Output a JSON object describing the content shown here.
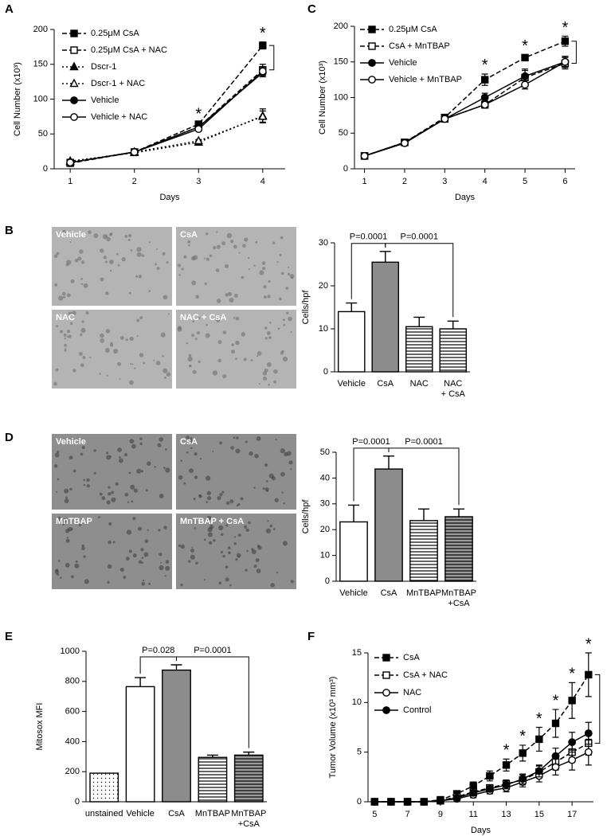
{
  "chart_data": [
    {
      "panel": "A",
      "type": "line",
      "x": [
        1,
        2,
        3,
        4
      ],
      "xlim": [
        0.75,
        4.35
      ],
      "xticks": [
        1,
        2,
        3,
        4
      ],
      "ylim": [
        0,
        200
      ],
      "yticks": [
        0,
        50,
        100,
        150,
        200
      ],
      "xlabel": "Days",
      "ylabel": "Cell Number (x10³)",
      "legend": "upper left",
      "series": [
        {
          "name": "0.25μM CsA",
          "color": "#000000",
          "line": "dashed",
          "marker": "square",
          "filled": true,
          "values": [
            9,
            24,
            64,
            177
          ],
          "errors": [
            1,
            1,
            2,
            5
          ]
        },
        {
          "name": "0.25μM CsA + NAC",
          "color": "#000000",
          "line": "dashed",
          "marker": "square",
          "filled": false,
          "values": [
            8,
            24,
            60,
            142
          ],
          "errors": [
            1,
            1,
            2,
            8
          ]
        },
        {
          "name": "Dscr-1",
          "color": "#000000",
          "line": "dotted",
          "marker": "triangle",
          "filled": true,
          "values": [
            11,
            23,
            38,
            76
          ],
          "errors": [
            1,
            1,
            2,
            10
          ]
        },
        {
          "name": "Dscr-1 + NAC",
          "color": "#000000",
          "line": "dotted",
          "marker": "triangle",
          "filled": false,
          "values": [
            10,
            24,
            40,
            75
          ],
          "errors": [
            1,
            1,
            2,
            8
          ]
        },
        {
          "name": "Vehicle",
          "color": "#000000",
          "line": "solid",
          "marker": "circle",
          "filled": true,
          "values": [
            9,
            24,
            60,
            138
          ],
          "errors": [
            1,
            1,
            2,
            6
          ]
        },
        {
          "name": "Vehicle + NAC",
          "color": "#000000",
          "line": "solid",
          "marker": "circle",
          "filled": false,
          "values": [
            9,
            24,
            57,
            140
          ],
          "errors": [
            1,
            1,
            2,
            6
          ]
        }
      ],
      "annotations": [
        {
          "text": "*",
          "x": 3
        },
        {
          "text": "*",
          "x": 4
        }
      ]
    },
    {
      "panel": "C",
      "type": "line",
      "x": [
        1,
        2,
        3,
        4,
        5,
        6
      ],
      "xlim": [
        0.75,
        6.25
      ],
      "xticks": [
        1,
        2,
        3,
        4,
        5,
        6
      ],
      "ylim": [
        0,
        200
      ],
      "yticks": [
        0,
        50,
        100,
        150,
        200
      ],
      "xlabel": "Days",
      "ylabel": "Cell Number (x10³)",
      "legend": "upper left",
      "series": [
        {
          "name": "0.25μM CsA",
          "color": "#000000",
          "line": "dashed",
          "marker": "square",
          "filled": true,
          "values": [
            18,
            37,
            72,
            125,
            156,
            179
          ],
          "errors": [
            2,
            2,
            3,
            8,
            4,
            7
          ]
        },
        {
          "name": "CsA + MnTBAP",
          "color": "#000000",
          "line": "dashed",
          "marker": "square",
          "filled": false,
          "values": [
            18,
            37,
            70,
            90,
            128,
            148
          ],
          "errors": [
            2,
            2,
            3,
            5,
            10,
            8
          ]
        },
        {
          "name": "Vehicle",
          "color": "#000000",
          "line": "solid",
          "marker": "circle",
          "filled": true,
          "values": [
            18,
            37,
            70,
            100,
            130,
            150
          ],
          "errors": [
            2,
            2,
            3,
            6,
            10,
            8
          ]
        },
        {
          "name": "Vehicle + MnTBAP",
          "color": "#000000",
          "line": "solid",
          "marker": "circle",
          "filled": false,
          "values": [
            18,
            36,
            70,
            90,
            118,
            150
          ],
          "errors": [
            2,
            2,
            3,
            5,
            6,
            8
          ]
        }
      ],
      "annotations": [
        {
          "text": "*",
          "x": 4
        },
        {
          "text": "*",
          "x": 5
        },
        {
          "text": "*",
          "x": 6
        }
      ]
    },
    {
      "panel": "B",
      "type": "bar",
      "image_labels": [
        "Vehicle",
        "CsA",
        "NAC",
        "NAC + CsA"
      ],
      "categories": [
        "Vehicle",
        "CsA",
        "NAC",
        "NAC\n+ CsA"
      ],
      "values": [
        14,
        25.5,
        10.5,
        10
      ],
      "errors": [
        2,
        2.5,
        2.2,
        1.8
      ],
      "colors": [
        "#ffffff",
        "#8c8c8c",
        "#ffffff",
        "#ffffff"
      ],
      "patterns": [
        "plain",
        "plain",
        "stripes",
        "stripes"
      ],
      "ylim": [
        0,
        30
      ],
      "yticks": [
        0,
        10,
        20,
        30
      ],
      "ylabel": "Cells/hpf",
      "annotations": [
        {
          "text": "P=0.0001",
          "between": [
            0,
            1
          ]
        },
        {
          "text": "P=0.0001",
          "between": [
            1,
            3
          ]
        }
      ]
    },
    {
      "panel": "D",
      "type": "bar",
      "image_labels": [
        "Vehicle",
        "CsA",
        "MnTBAP",
        "MnTBAP + CsA"
      ],
      "categories": [
        "Vehicle",
        "CsA",
        "MnTBAP",
        "MnTBAP\n+CsA"
      ],
      "values": [
        23,
        43.5,
        23.5,
        25
      ],
      "errors": [
        6.5,
        5,
        4.5,
        3
      ],
      "colors": [
        "#ffffff",
        "#8c8c8c",
        "#ffffff",
        "#ffffff"
      ],
      "patterns": [
        "plain",
        "plain",
        "stripes",
        "stripes-gray"
      ],
      "ylim": [
        0,
        50
      ],
      "yticks": [
        0,
        10,
        20,
        30,
        40,
        50
      ],
      "ylabel": "Cells/hpf",
      "annotations": [
        {
          "text": "P=0.0001",
          "between": [
            0,
            1
          ]
        },
        {
          "text": "P=0.0001",
          "between": [
            1,
            3
          ]
        }
      ]
    },
    {
      "panel": "E",
      "type": "bar",
      "categories": [
        "unstained",
        "Vehicle",
        "CsA",
        "MnTBAP",
        "MnTBAP\n+CsA"
      ],
      "values": [
        190,
        765,
        875,
        295,
        310
      ],
      "errors": [
        0,
        60,
        35,
        15,
        20
      ],
      "colors": [
        "#ffffff",
        "#ffffff",
        "#8c8c8c",
        "#ffffff",
        "#ffffff"
      ],
      "patterns": [
        "dots",
        "plain",
        "plain",
        "stripes",
        "stripes-gray"
      ],
      "ylim": [
        0,
        1000
      ],
      "yticks": [
        0,
        200,
        400,
        600,
        800,
        1000
      ],
      "ylabel": "Mitosox MFI",
      "annotations": [
        {
          "text": "P=0.028",
          "between": [
            1,
            2
          ]
        },
        {
          "text": "P=0.0001",
          "between": [
            2,
            4
          ]
        }
      ]
    },
    {
      "panel": "F",
      "type": "line",
      "x": [
        5,
        6,
        7,
        8,
        9,
        10,
        11,
        12,
        13,
        14,
        15,
        16,
        17,
        18
      ],
      "xlim": [
        4.6,
        18.3
      ],
      "xticks": [
        5,
        7,
        9,
        11,
        13,
        15,
        17
      ],
      "ylim": [
        0,
        15
      ],
      "yticks": [
        0,
        5,
        10,
        15
      ],
      "xlabel": "Days",
      "ylabel": "Tumor Volume (x10³ mm³)",
      "legend": "upper left",
      "series": [
        {
          "name": "CsA",
          "color": "#000000",
          "line": "dashed",
          "marker": "square",
          "filled": true,
          "values": [
            0,
            0,
            0,
            0,
            0.2,
            0.8,
            1.6,
            2.6,
            3.7,
            4.9,
            6.3,
            7.9,
            10.2,
            12.8
          ],
          "errors": [
            0,
            0,
            0,
            0,
            0.1,
            0.3,
            0.4,
            0.5,
            0.6,
            0.8,
            1.2,
            1.4,
            1.8,
            2.2
          ]
        },
        {
          "name": "CsA + NAC",
          "color": "#000000",
          "line": "dashed",
          "marker": "square",
          "filled": false,
          "values": [
            0,
            0,
            0,
            0,
            0.1,
            0.5,
            1.0,
            1.4,
            1.8,
            2.2,
            3.0,
            4.0,
            5.0,
            5.9
          ],
          "errors": [
            0,
            0,
            0,
            0,
            0.1,
            0.2,
            0.3,
            0.3,
            0.4,
            0.5,
            0.6,
            0.8,
            1.0,
            1.2
          ]
        },
        {
          "name": "NAC",
          "color": "#000000",
          "line": "solid",
          "marker": "circle",
          "filled": false,
          "values": [
            0,
            0,
            0,
            0,
            0.1,
            0.3,
            0.7,
            1.1,
            1.4,
            2.0,
            2.6,
            3.5,
            4.2,
            5.0
          ],
          "errors": [
            0,
            0,
            0,
            0,
            0.1,
            0.2,
            0.3,
            0.3,
            0.4,
            0.5,
            0.6,
            0.8,
            1.0,
            1.3
          ]
        },
        {
          "name": "Control",
          "color": "#000000",
          "line": "solid",
          "marker": "circle",
          "filled": true,
          "values": [
            0,
            0,
            0,
            0,
            0.1,
            0.4,
            0.9,
            1.3,
            1.7,
            2.3,
            3.1,
            4.6,
            6.0,
            6.9
          ],
          "errors": [
            0,
            0,
            0,
            0,
            0.1,
            0.2,
            0.3,
            0.3,
            0.4,
            0.5,
            0.6,
            0.8,
            1.0,
            1.1
          ]
        }
      ],
      "annotations": [
        {
          "text": "*",
          "x": 13
        },
        {
          "text": "*",
          "x": 14
        },
        {
          "text": "*",
          "x": 15
        },
        {
          "text": "*",
          "x": 16
        },
        {
          "text": "*",
          "x": 17
        },
        {
          "text": "*",
          "x": 18
        }
      ]
    }
  ]
}
